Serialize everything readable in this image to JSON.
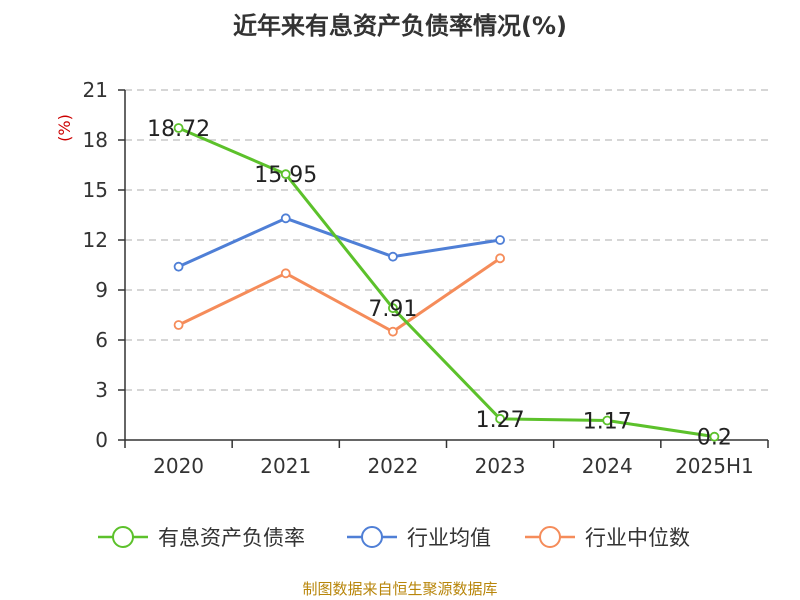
{
  "page": {
    "title": "近年来有息资产负债率情况(%)",
    "source": "制图数据来自恒生聚源数据库"
  },
  "chart_data": {
    "type": "line",
    "title": "近年来有息资产负债率情况(%)",
    "ylabel": "(%)",
    "xlabel": "",
    "categories": [
      "2020",
      "2021",
      "2022",
      "2023",
      "2024",
      "2025H1"
    ],
    "ylim": [
      0,
      21
    ],
    "yticks": [
      0,
      3,
      6,
      9,
      12,
      15,
      18,
      21
    ],
    "grid": true,
    "legend_position": "bottom",
    "series": [
      {
        "name": "有息资产负债率",
        "color": "#5cc12b",
        "values": [
          18.72,
          15.95,
          7.91,
          1.27,
          1.17,
          0.2
        ],
        "labels": [
          "18.72",
          "15.95",
          "7.91",
          "1.27",
          "1.17",
          "0.2"
        ]
      },
      {
        "name": "行业均值",
        "color": "#4f7fd6",
        "values": [
          10.4,
          13.3,
          11.0,
          12.0,
          null,
          null
        ]
      },
      {
        "name": "行业中位数",
        "color": "#f58c5a",
        "values": [
          6.9,
          10.0,
          6.5,
          10.9,
          null,
          null
        ]
      }
    ]
  }
}
